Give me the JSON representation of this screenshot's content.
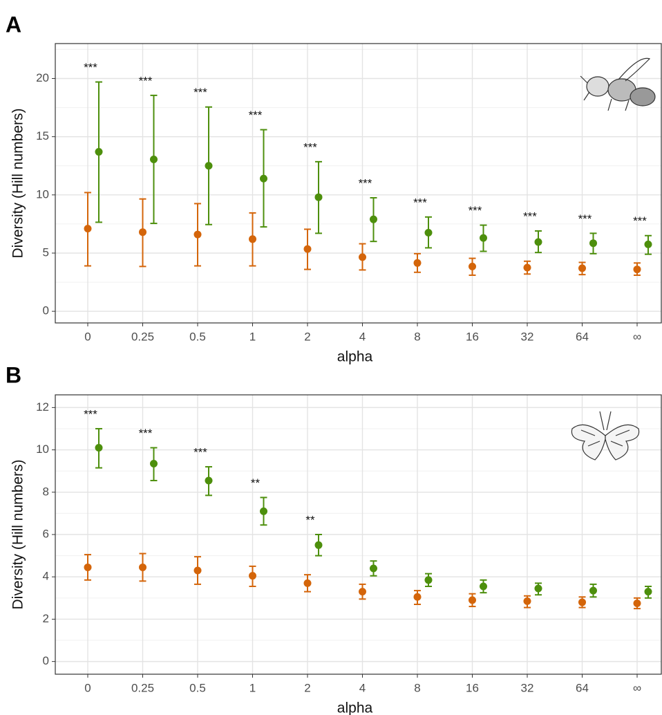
{
  "chart_data": [
    {
      "type": "dot-errorbar",
      "panel_label": "A",
      "x_label": "alpha",
      "y_label": "Diversity (Hill numbers)",
      "categories": [
        "0",
        "0.25",
        "0.5",
        "1",
        "2",
        "4",
        "8",
        "16",
        "32",
        "64",
        "∞"
      ],
      "ylim": [
        -1,
        23
      ],
      "yticks": [
        0,
        5,
        10,
        15,
        20
      ],
      "grid": true,
      "series": [
        {
          "color": "#d4650a",
          "values": [
            7.1,
            6.8,
            6.6,
            6.2,
            5.35,
            4.65,
            4.15,
            3.85,
            3.75,
            3.7,
            3.6
          ],
          "low": [
            3.9,
            3.85,
            3.9,
            3.9,
            3.6,
            3.55,
            3.35,
            3.1,
            3.2,
            3.15,
            3.1
          ],
          "high": [
            10.2,
            9.65,
            9.25,
            8.45,
            7.05,
            5.8,
            4.95,
            4.55,
            4.3,
            4.2,
            4.15
          ]
        },
        {
          "color": "#4d8f0c",
          "values": [
            13.7,
            13.05,
            12.5,
            11.4,
            9.8,
            7.9,
            6.75,
            6.3,
            5.95,
            5.85,
            5.75
          ],
          "low": [
            7.65,
            7.55,
            7.45,
            7.25,
            6.7,
            6.0,
            5.45,
            5.15,
            5.05,
            4.95,
            4.9
          ],
          "high": [
            19.7,
            18.55,
            17.55,
            15.6,
            12.85,
            9.75,
            8.1,
            7.4,
            6.9,
            6.7,
            6.5
          ]
        }
      ],
      "annotations": [
        "***",
        "***",
        "***",
        "***",
        "***",
        "***",
        "***",
        "***",
        "***",
        "***",
        "***"
      ]
    },
    {
      "type": "dot-errorbar",
      "panel_label": "B",
      "x_label": "alpha",
      "y_label": "Diversity (Hill numbers)",
      "categories": [
        "0",
        "0.25",
        "0.5",
        "1",
        "2",
        "4",
        "8",
        "16",
        "32",
        "64",
        "∞"
      ],
      "ylim": [
        -0.6,
        12.6
      ],
      "yticks": [
        0,
        2,
        4,
        6,
        8,
        10,
        12
      ],
      "grid": true,
      "series": [
        {
          "color": "#d4650a",
          "values": [
            4.45,
            4.45,
            4.3,
            4.05,
            3.7,
            3.3,
            3.05,
            2.9,
            2.85,
            2.8,
            2.75
          ],
          "low": [
            3.85,
            3.8,
            3.65,
            3.55,
            3.3,
            2.95,
            2.7,
            2.6,
            2.55,
            2.55,
            2.5
          ],
          "high": [
            5.05,
            5.1,
            4.95,
            4.5,
            4.1,
            3.65,
            3.35,
            3.2,
            3.1,
            3.05,
            3.0
          ]
        },
        {
          "color": "#4d8f0c",
          "values": [
            10.1,
            9.35,
            8.55,
            7.1,
            5.5,
            4.4,
            3.85,
            3.55,
            3.45,
            3.35,
            3.3
          ],
          "low": [
            9.15,
            8.55,
            7.85,
            6.45,
            5.0,
            4.05,
            3.55,
            3.25,
            3.15,
            3.05,
            3.0
          ],
          "high": [
            11.0,
            10.1,
            9.2,
            7.75,
            6.0,
            4.75,
            4.15,
            3.85,
            3.7,
            3.65,
            3.55
          ]
        }
      ],
      "annotations": [
        "***",
        "***",
        "***",
        "**",
        "**",
        null,
        null,
        null,
        null,
        null,
        null
      ]
    }
  ]
}
